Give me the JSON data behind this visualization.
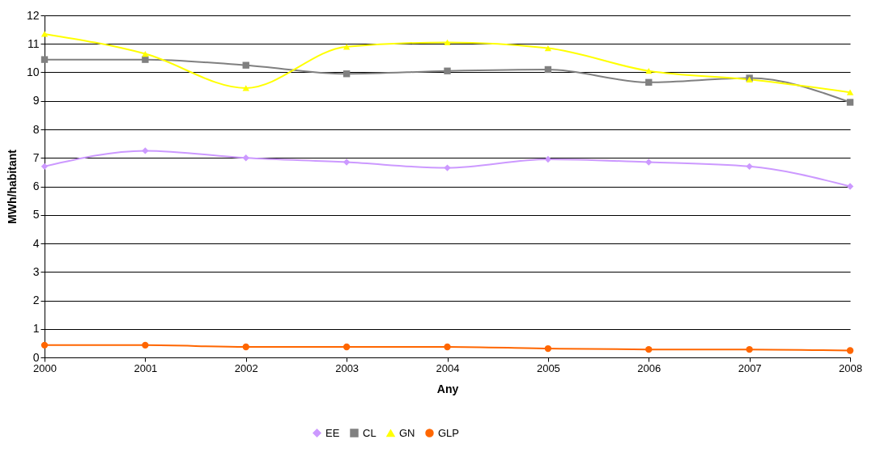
{
  "chart_data": {
    "type": "line",
    "xlabel": "Any",
    "ylabel": "MWh/habitant",
    "x": [
      2000,
      2001,
      2002,
      2003,
      2004,
      2005,
      2006,
      2007,
      2008
    ],
    "xlim": [
      2000,
      2008
    ],
    "xticks": [
      2000,
      2001,
      2002,
      2003,
      2004,
      2005,
      2006,
      2007,
      2008
    ],
    "ylim": [
      0,
      12
    ],
    "yticks": [
      0,
      1,
      2,
      3,
      4,
      5,
      6,
      7,
      8,
      9,
      10,
      11,
      12
    ],
    "grid": "y",
    "legend": "bottom",
    "line_style": "solid",
    "series": [
      {
        "name": "EE",
        "color": "#cc99ff",
        "marker": "diamond",
        "values": [
          6.7,
          7.25,
          7.0,
          6.85,
          6.65,
          6.95,
          6.85,
          6.7,
          6.0
        ]
      },
      {
        "name": "CL",
        "color": "#808080",
        "marker": "square",
        "values": [
          10.45,
          10.45,
          10.25,
          9.95,
          10.05,
          10.1,
          9.65,
          9.8,
          8.95
        ]
      },
      {
        "name": "GN",
        "color": "#ffff00",
        "marker": "triangle",
        "values": [
          11.35,
          10.65,
          9.45,
          10.9,
          11.05,
          10.85,
          10.05,
          9.75,
          9.3
        ]
      },
      {
        "name": "GLP",
        "color": "#ff6600",
        "marker": "circle",
        "values": [
          0.43,
          0.43,
          0.37,
          0.37,
          0.37,
          0.31,
          0.28,
          0.28,
          0.24
        ]
      }
    ]
  }
}
